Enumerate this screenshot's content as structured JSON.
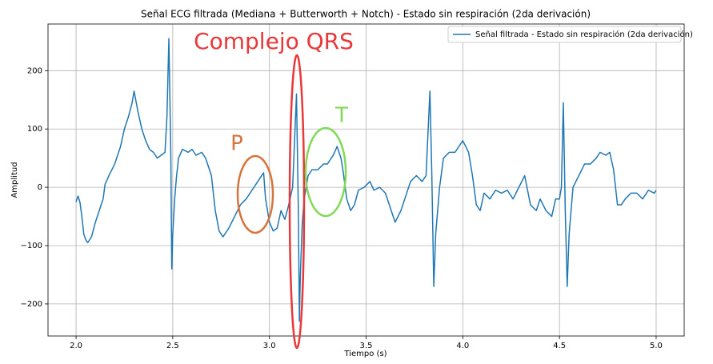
{
  "chart_data": {
    "type": "line",
    "title": "Señal ECG filtrada (Mediana + Butterworth + Notch) - Estado sin respiración (2da derivación)",
    "xlabel": "Tiempo (s)",
    "ylabel": "Amplitud",
    "xlim": [
      1.855,
      5.145
    ],
    "ylim": [
      -255,
      280
    ],
    "xticks": [
      {
        "value": 2,
        "label": "2.0"
      },
      {
        "value": 2.5,
        "label": "2.5"
      },
      {
        "value": 3,
        "label": "3.0"
      },
      {
        "value": 3.5,
        "label": "3.5"
      },
      {
        "value": 4,
        "label": "4.0"
      },
      {
        "value": 4.5,
        "label": "4.5"
      },
      {
        "value": 5,
        "label": "5.0"
      }
    ],
    "yticks": [
      {
        "value": -200,
        "label": "−200"
      },
      {
        "value": -100,
        "label": "−100"
      },
      0,
      100,
      200
    ],
    "grid": true,
    "legend": "upper right",
    "x": [
      2.0,
      2.01,
      2.02,
      2.03,
      2.04,
      2.05,
      2.06,
      2.08,
      2.1,
      2.12,
      2.14,
      2.15,
      2.17,
      2.2,
      2.23,
      2.25,
      2.27,
      2.29,
      2.3,
      2.32,
      2.34,
      2.36,
      2.38,
      2.4,
      2.42,
      2.44,
      2.46,
      2.47,
      2.48,
      2.49,
      2.495,
      2.5,
      2.51,
      2.52,
      2.53,
      2.55,
      2.58,
      2.6,
      2.62,
      2.65,
      2.67,
      2.7,
      2.72,
      2.74,
      2.76,
      2.79,
      2.82,
      2.85,
      2.88,
      2.91,
      2.94,
      2.97,
      2.98,
      3.0,
      3.02,
      3.04,
      3.06,
      3.08,
      3.1,
      3.12,
      3.14,
      3.15,
      3.155,
      3.16,
      3.17,
      3.18,
      3.2,
      3.22,
      3.25,
      3.28,
      3.3,
      3.33,
      3.35,
      3.37,
      3.38,
      3.4,
      3.42,
      3.44,
      3.46,
      3.49,
      3.52,
      3.54,
      3.57,
      3.6,
      3.63,
      3.65,
      3.68,
      3.7,
      3.73,
      3.76,
      3.79,
      3.81,
      3.83,
      3.84,
      3.85,
      3.86,
      3.88,
      3.9,
      3.93,
      3.96,
      4.0,
      4.03,
      4.05,
      4.07,
      4.09,
      4.11,
      4.14,
      4.17,
      4.2,
      4.23,
      4.26,
      4.29,
      4.32,
      4.35,
      4.38,
      4.4,
      4.43,
      4.46,
      4.48,
      4.5,
      4.51,
      4.52,
      4.53,
      4.54,
      4.55,
      4.57,
      4.6,
      4.63,
      4.66,
      4.69,
      4.71,
      4.74,
      4.76,
      4.78,
      4.8,
      4.82,
      4.84,
      4.87,
      4.9,
      4.93,
      4.96,
      4.99,
      5.0
    ],
    "series": [
      {
        "name": "Señal filtrada - Estado sin respiración (2da derivación)",
        "color": "#1f77b4",
        "values": [
          -25,
          -15,
          -25,
          -50,
          -80,
          -90,
          -95,
          -85,
          -60,
          -40,
          -20,
          5,
          20,
          40,
          70,
          100,
          120,
          145,
          165,
          130,
          100,
          80,
          65,
          60,
          50,
          55,
          60,
          120,
          255,
          60,
          -140,
          -80,
          -20,
          20,
          50,
          65,
          60,
          65,
          55,
          60,
          50,
          20,
          -40,
          -75,
          -85,
          -70,
          -50,
          -30,
          -20,
          -5,
          10,
          25,
          -20,
          -60,
          -75,
          -70,
          -40,
          -55,
          -30,
          0,
          160,
          -50,
          -230,
          -150,
          -60,
          -20,
          20,
          30,
          30,
          40,
          40,
          55,
          70,
          50,
          30,
          -20,
          -40,
          -30,
          -5,
          0,
          10,
          -5,
          0,
          -10,
          -40,
          -60,
          -40,
          -20,
          10,
          20,
          10,
          20,
          165,
          20,
          -170,
          -80,
          0,
          50,
          60,
          60,
          80,
          60,
          20,
          -30,
          -40,
          -10,
          -20,
          -5,
          -10,
          -5,
          -20,
          0,
          20,
          -30,
          -40,
          -20,
          -40,
          -50,
          -20,
          -20,
          0,
          145,
          -40,
          -170,
          -80,
          0,
          20,
          40,
          40,
          50,
          60,
          55,
          60,
          30,
          -30,
          -30,
          -20,
          -10,
          -10,
          -20,
          -5,
          -10,
          -5
        ]
      }
    ],
    "annotations": [
      {
        "text": "Complejo QRS",
        "color": "#e8383a"
      },
      {
        "text": "P",
        "color": "#d5743c"
      },
      {
        "text": "T",
        "color": "#7fd957"
      }
    ]
  }
}
